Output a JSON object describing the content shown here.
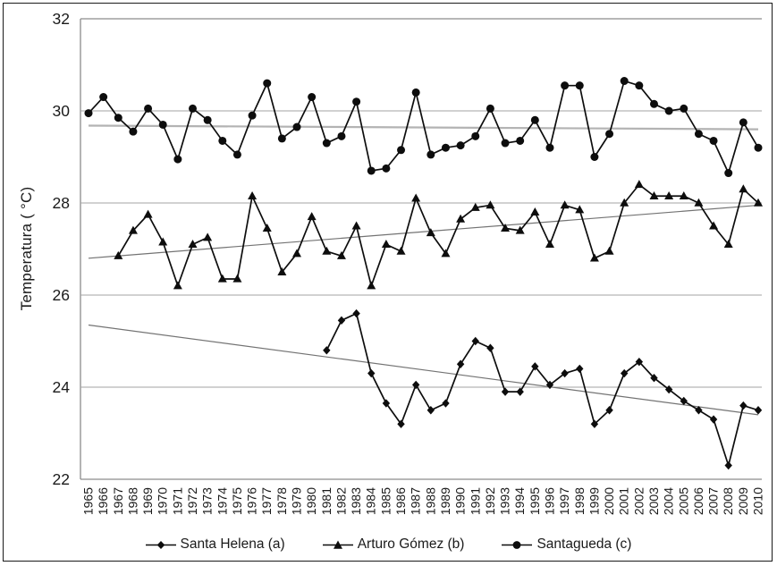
{
  "figure_title": "",
  "chart_data": {
    "type": "line",
    "title": "",
    "xlabel": "",
    "ylabel": "Temperatura ( °C)",
    "ylim": [
      22,
      32
    ],
    "y_ticks": [
      32,
      30,
      28,
      26,
      24,
      22
    ],
    "gridlines_at": [
      30,
      28,
      26,
      24
    ],
    "grid": "horizontal",
    "legend_position": "bottom-center",
    "x_categories": [
      1965,
      1966,
      1967,
      1968,
      1969,
      1970,
      1971,
      1972,
      1973,
      1974,
      1975,
      1976,
      1977,
      1978,
      1979,
      1980,
      1981,
      1982,
      1983,
      1984,
      1985,
      1986,
      1987,
      1988,
      1989,
      1990,
      1991,
      1992,
      1993,
      1994,
      1995,
      1996,
      1997,
      1998,
      1999,
      2000,
      2001,
      2002,
      2003,
      2004,
      2005,
      2006,
      2007,
      2008,
      2009,
      2010
    ],
    "series": [
      {
        "name": "Santa Helena (a)",
        "marker": "diamond",
        "color": "#0d0d0d",
        "start_year": 1981,
        "values": [
          24.8,
          25.45,
          25.6,
          24.3,
          23.65,
          23.2,
          24.05,
          23.5,
          23.65,
          24.5,
          25.0,
          24.85,
          23.9,
          23.9,
          24.45,
          24.05,
          24.3,
          24.4,
          23.2,
          23.5,
          24.3,
          24.55,
          24.2,
          23.95,
          23.7,
          23.5,
          23.3,
          22.3,
          23.6,
          23.5
        ]
      },
      {
        "name": "Arturo Gómez (b)",
        "marker": "triangle",
        "color": "#0d0d0d",
        "start_year": 1967,
        "values": [
          26.85,
          27.4,
          27.75,
          27.15,
          26.2,
          27.1,
          27.25,
          26.35,
          26.35,
          28.15,
          27.45,
          26.5,
          26.9,
          27.7,
          26.95,
          26.85,
          27.5,
          26.2,
          27.1,
          26.95,
          28.1,
          27.35,
          26.9,
          27.65,
          27.9,
          27.95,
          27.45,
          27.4,
          27.8,
          27.1,
          27.95,
          27.85,
          26.8,
          26.95,
          28.0,
          28.4,
          28.15,
          28.15,
          28.15,
          28.0,
          27.5,
          27.1,
          28.3,
          28.0
        ]
      },
      {
        "name": "Santagueda (c)",
        "marker": "circle",
        "color": "#0d0d0d",
        "start_year": 1965,
        "values": [
          29.95,
          30.3,
          29.85,
          29.55,
          30.05,
          29.7,
          28.95,
          30.05,
          29.8,
          29.35,
          29.05,
          29.9,
          30.6,
          29.4,
          29.65,
          30.3,
          29.3,
          29.45,
          30.2,
          28.7,
          28.75,
          29.15,
          30.4,
          29.05,
          29.2,
          29.25,
          29.45,
          30.05,
          29.3,
          29.35,
          29.8,
          29.2,
          30.55,
          30.55,
          29.0,
          29.5,
          30.65,
          30.55,
          30.15,
          30.0,
          30.05,
          29.5,
          29.35,
          28.65,
          29.75,
          29.2
        ]
      }
    ],
    "trendlines": [
      {
        "series": "Santa Helena (a)",
        "x": [
          1965,
          2010
        ],
        "y": [
          25.35,
          23.4
        ],
        "color": "#737373",
        "width": 1.2
      },
      {
        "series": "Arturo Gómez (b)",
        "x": [
          1965,
          2010
        ],
        "y": [
          26.8,
          27.95
        ],
        "color": "#737373",
        "width": 1.2
      },
      {
        "series": "Santagueda (c)",
        "x": [
          1965,
          2010
        ],
        "y": [
          29.68,
          29.6
        ],
        "color": "#b3b3b3",
        "width": 2.2
      }
    ]
  },
  "colors": {
    "series_line": "#0d0d0d",
    "gridline": "#a3a3a3",
    "axis_line": "#8c8c8c",
    "text": "#1a1a1a",
    "border": "#1a1a1a",
    "background": "#ffffff"
  }
}
